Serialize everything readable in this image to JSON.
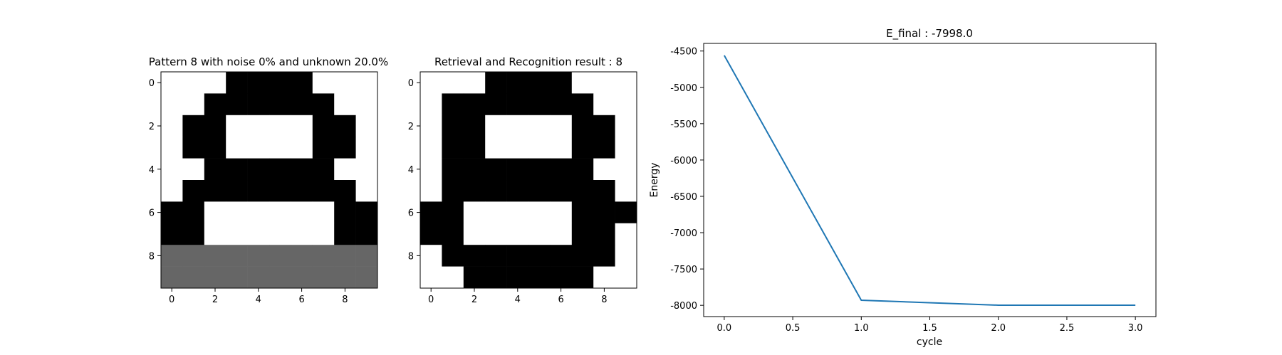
{
  "chart_data": [
    {
      "type": "heatmap",
      "title": "Pattern 8 with noise 0% and unknown 20.0%",
      "xticks": [
        0,
        2,
        4,
        6,
        8
      ],
      "yticks": [
        0,
        2,
        4,
        6,
        8
      ],
      "rows": 10,
      "cols": 10,
      "legend": "0 = white, 1 = black, 0.5 = gray (unknown)",
      "grid": [
        [
          0,
          0,
          0,
          1,
          1,
          1,
          1,
          0,
          0,
          0
        ],
        [
          0,
          0,
          1,
          1,
          1,
          1,
          1,
          1,
          0,
          0
        ],
        [
          0,
          1,
          1,
          0,
          0,
          0,
          0,
          1,
          1,
          0
        ],
        [
          0,
          1,
          1,
          0,
          0,
          0,
          0,
          1,
          1,
          0
        ],
        [
          0,
          0,
          1,
          1,
          1,
          1,
          1,
          1,
          0,
          0
        ],
        [
          0,
          1,
          1,
          1,
          1,
          1,
          1,
          1,
          1,
          0
        ],
        [
          1,
          1,
          0,
          0,
          0,
          0,
          0,
          0,
          1,
          1
        ],
        [
          1,
          1,
          0,
          0,
          0,
          0,
          0,
          0,
          1,
          1
        ],
        [
          0.5,
          0.5,
          0.5,
          0.5,
          0.5,
          0.5,
          0.5,
          0.5,
          0.5,
          0.5
        ],
        [
          0.5,
          0.5,
          0.5,
          0.5,
          0.5,
          0.5,
          0.5,
          0.5,
          0.5,
          0.5
        ]
      ]
    },
    {
      "type": "heatmap",
      "title": "Retrieval and Recognition result : 8",
      "xticks": [
        0,
        2,
        4,
        6,
        8
      ],
      "yticks": [
        0,
        2,
        4,
        6,
        8
      ],
      "rows": 10,
      "cols": 10,
      "legend": "0 = white, 1 = black",
      "grid": [
        [
          0,
          0,
          0,
          1,
          1,
          1,
          1,
          0,
          0,
          0
        ],
        [
          0,
          1,
          1,
          1,
          1,
          1,
          1,
          1,
          0,
          0
        ],
        [
          0,
          1,
          1,
          0,
          0,
          0,
          0,
          1,
          1,
          0
        ],
        [
          0,
          1,
          1,
          0,
          0,
          0,
          0,
          1,
          1,
          0
        ],
        [
          0,
          1,
          1,
          1,
          1,
          1,
          1,
          1,
          0,
          0
        ],
        [
          0,
          1,
          1,
          1,
          1,
          1,
          1,
          1,
          1,
          0
        ],
        [
          1,
          1,
          0,
          0,
          0,
          0,
          0,
          1,
          1,
          1
        ],
        [
          1,
          1,
          0,
          0,
          0,
          0,
          0,
          1,
          1,
          0
        ],
        [
          0,
          1,
          1,
          1,
          1,
          1,
          1,
          1,
          1,
          0
        ],
        [
          0,
          0,
          1,
          1,
          1,
          1,
          1,
          1,
          0,
          0
        ]
      ]
    },
    {
      "type": "line",
      "title": "E_final : -7998.0",
      "xlabel": "cycle",
      "ylabel": "Energy",
      "xlim": [
        -0.15,
        3.15
      ],
      "ylim": [
        -8155,
        -4395
      ],
      "xticks": [
        "0.0",
        "0.5",
        "1.0",
        "1.5",
        "2.0",
        "2.5",
        "3.0"
      ],
      "yticks": [
        "-4500",
        "-5000",
        "-5500",
        "-6000",
        "-6500",
        "-7000",
        "-7500",
        "-8000"
      ],
      "grid": false,
      "color": "#1f77b4",
      "series": [
        {
          "x": [
            0,
            1,
            2,
            3
          ],
          "y": [
            -4560,
            -7930,
            -7998,
            -7998
          ]
        }
      ]
    }
  ]
}
